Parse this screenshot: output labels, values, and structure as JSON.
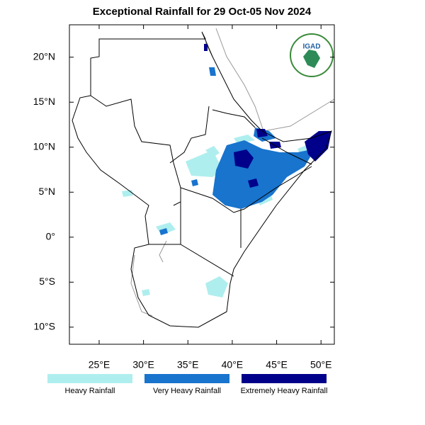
{
  "map": {
    "title": "Exceptional Rainfall for 29 Oct-05 Nov 2024",
    "logo_text": "IGAD",
    "xlim": [
      21.65,
      51.5
    ],
    "ylim": [
      -11.9,
      23.6
    ],
    "xticks": [
      {
        "value": 25,
        "label": "25°E"
      },
      {
        "value": 30,
        "label": "30°E"
      },
      {
        "value": 35,
        "label": "35°E"
      },
      {
        "value": 40,
        "label": "40°E"
      },
      {
        "value": 45,
        "label": "45°E"
      },
      {
        "value": 50,
        "label": "50°E"
      }
    ],
    "yticks": [
      {
        "value": 20,
        "label": "20°N"
      },
      {
        "value": 15,
        "label": "15°N"
      },
      {
        "value": 10,
        "label": "10°N"
      },
      {
        "value": 5,
        "label": "5°N"
      },
      {
        "value": 0,
        "label": "0°"
      },
      {
        "value": -5,
        "label": "5°S"
      },
      {
        "value": -10,
        "label": "10°S"
      }
    ],
    "legend": [
      {
        "name": "Heavy Rainfall",
        "color": "#afeeee"
      },
      {
        "name": "Very Heavy Rainfall",
        "color": "#1874cd"
      },
      {
        "name": "Extremely Heavy Rainfall",
        "color": "#00008b"
      }
    ]
  }
}
